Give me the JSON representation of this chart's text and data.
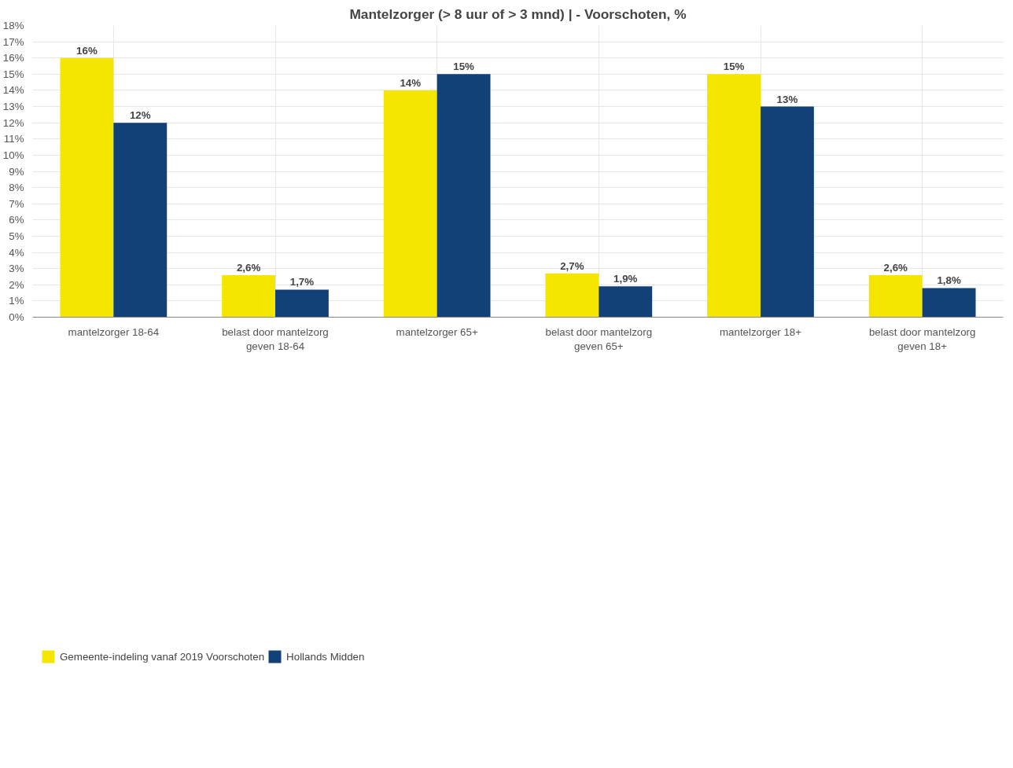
{
  "chart_data": {
    "type": "bar",
    "title": "Mantelzorger (> 8 uur of > 3 mnd) | - Voorschoten, %",
    "categories": [
      "mantelzorger 18-64",
      "belast door mantelzorg geven 18-64",
      "mantelzorger 65+",
      "belast door mantelzorg geven 65+",
      "mantelzorger 18+",
      "belast door mantelzorg geven 18+"
    ],
    "series": [
      {
        "name": "Gemeente-indeling vanaf 2019 Voorschoten",
        "color": "#f5e600",
        "values": [
          16,
          2.6,
          14,
          2.7,
          15,
          2.6
        ],
        "value_labels": [
          "16%",
          "2,6%",
          "14%",
          "2,7%",
          "15%",
          "2,6%"
        ]
      },
      {
        "name": "Hollands Midden",
        "color": "#114177",
        "values": [
          12,
          1.7,
          15,
          1.9,
          13,
          1.8
        ],
        "value_labels": [
          "12%",
          "1,7%",
          "15%",
          "1,9%",
          "13%",
          "1,8%"
        ]
      }
    ],
    "ylim": [
      0,
      18
    ],
    "yticks": [
      {
        "value": 0,
        "label": "0%"
      },
      {
        "value": 1,
        "label": "1%"
      },
      {
        "value": 2,
        "label": "2%"
      },
      {
        "value": 3,
        "label": "3%"
      },
      {
        "value": 4,
        "label": "4%"
      },
      {
        "value": 5,
        "label": "5%"
      },
      {
        "value": 6,
        "label": "6%"
      },
      {
        "value": 7,
        "label": "7%"
      },
      {
        "value": 8,
        "label": "8%"
      },
      {
        "value": 9,
        "label": "9%"
      },
      {
        "value": 10,
        "label": "10%"
      },
      {
        "value": 11,
        "label": "11%"
      },
      {
        "value": 12,
        "label": "12%"
      },
      {
        "value": 13,
        "label": "13%"
      },
      {
        "value": 14,
        "label": "14%"
      },
      {
        "value": 15,
        "label": "15%"
      },
      {
        "value": 16,
        "label": "16%"
      },
      {
        "value": 17,
        "label": "17%"
      },
      {
        "value": 18,
        "label": "18%"
      }
    ],
    "grid": true,
    "legend": "bottom left"
  }
}
